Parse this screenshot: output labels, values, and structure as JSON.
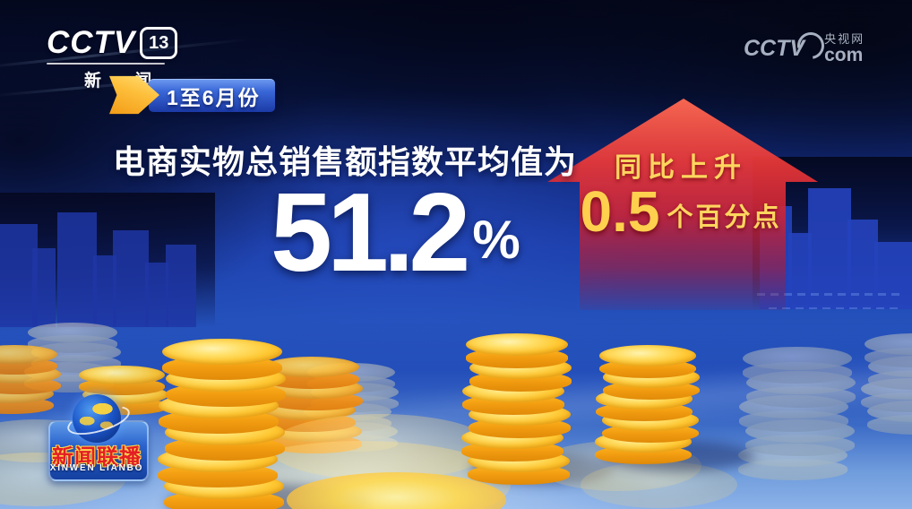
{
  "channel_bug": {
    "brand": "CCTV",
    "channel_number": "13",
    "channel_name": "新 闻"
  },
  "watermark": {
    "brand": "CCTV",
    "site": "央视网",
    "domain": "com"
  },
  "period_badge": {
    "label": "1至6月份"
  },
  "headline": {
    "title": "电商实物总销售额指数平均值为",
    "value": "51.2",
    "unit": "%"
  },
  "comparison": {
    "direction": "up",
    "label": "同比上升",
    "value": "0.5",
    "unit": "个百分点"
  },
  "program_logo": {
    "title_cn": "新闻联播",
    "title_en": "XINWEN LIANBO"
  },
  "colors": {
    "accent_red": "#d42b32",
    "coin_gold": "#ffc832",
    "highlight_yellow": "#ffd55e",
    "deep_navy": "#060c2c",
    "royal_blue": "#1d3fae",
    "floor_blue": "#7fa9e4",
    "badge_blue": "#2b57c8"
  }
}
